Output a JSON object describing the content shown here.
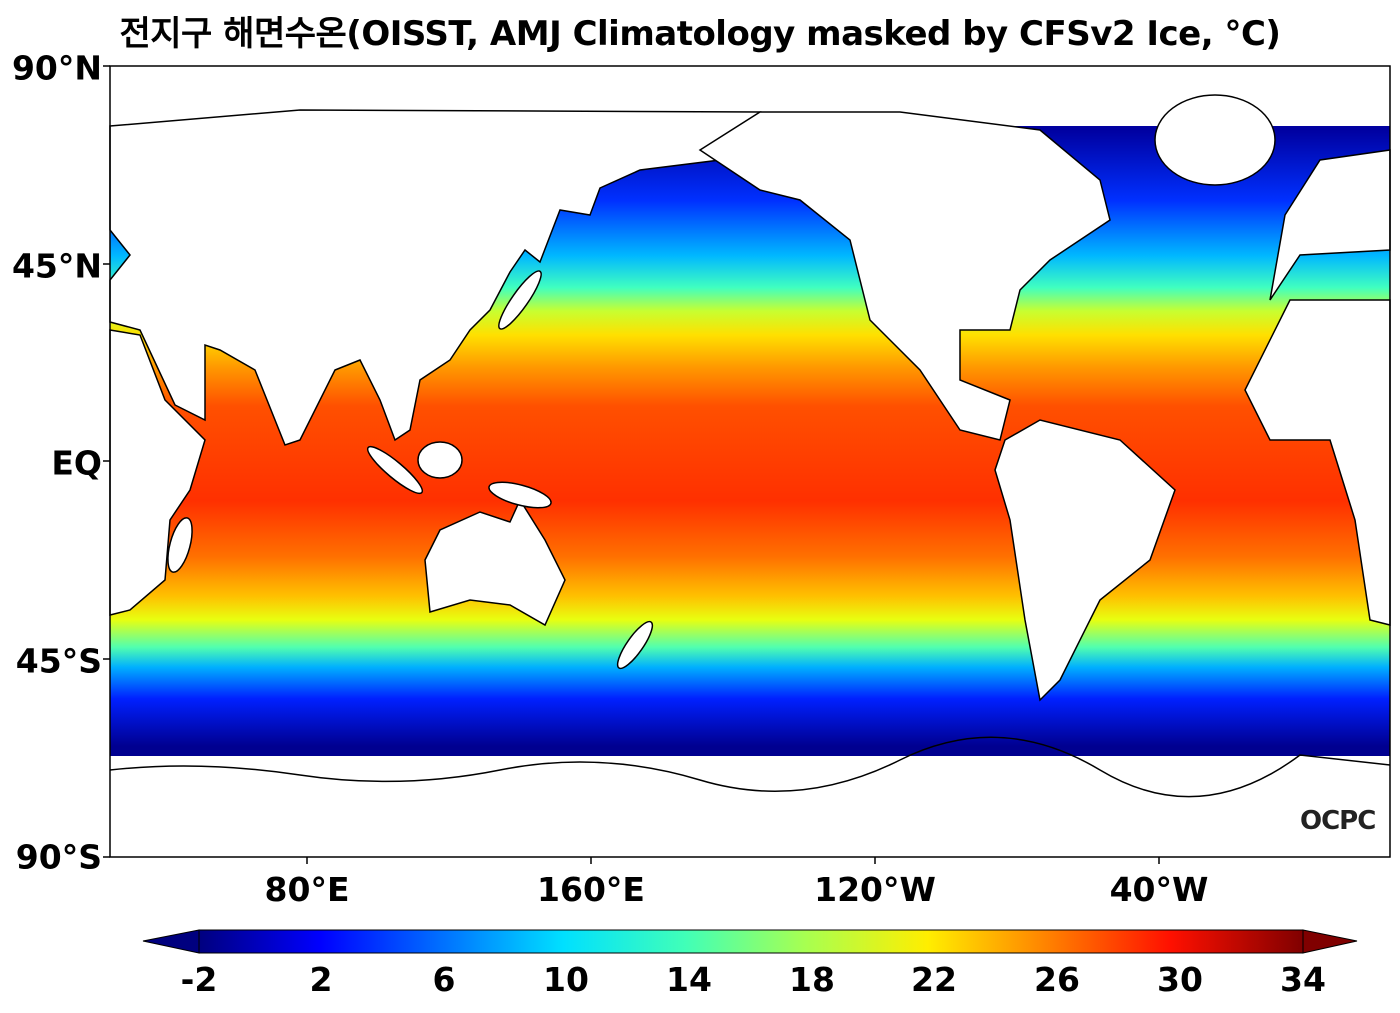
{
  "title": "전지구 해면수온(OISST, AMJ Climatology masked by CFSv2 Ice, °C)",
  "map": {
    "lat_labels": [
      "90°N",
      "45°N",
      "EQ",
      "45°S",
      "90°S"
    ],
    "lon_labels": [
      "80°E",
      "160°E",
      "120°W",
      "40°W"
    ],
    "logo": "OCPC"
  },
  "colorbar": {
    "ticks": [
      "-2",
      "2",
      "6",
      "10",
      "14",
      "18",
      "22",
      "26",
      "30",
      "34"
    ],
    "range": [
      -2,
      34
    ],
    "extend": "both",
    "colormap": "jet"
  }
}
